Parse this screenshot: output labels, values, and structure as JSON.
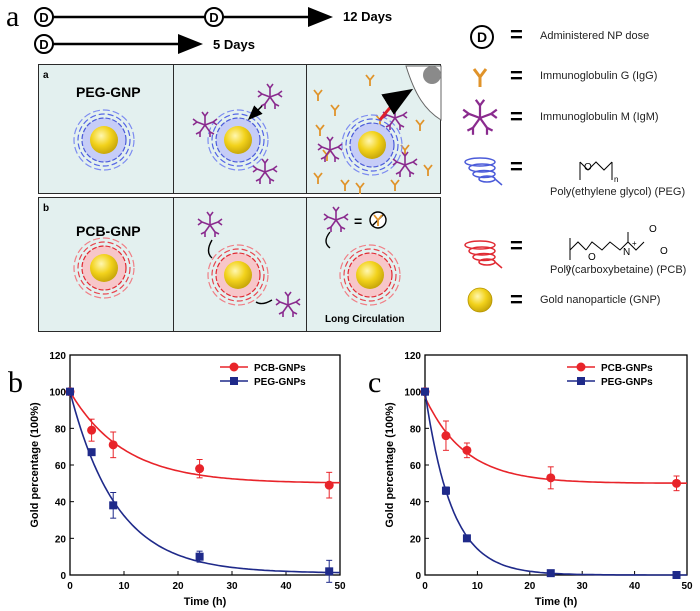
{
  "panel_a_letter": "a",
  "panel_b_letter": "b",
  "panel_c_letter": "c",
  "timeline": {
    "dose_symbol": "D",
    "label_12": "12 Days",
    "label_5": "5 Days"
  },
  "schematic": {
    "row_a_label": "a",
    "row_b_label": "b",
    "peg_title": "PEG-GNP",
    "pcb_title": "PCB-GNP",
    "long_circulation": "Long Circulation"
  },
  "legend": {
    "equals": "=",
    "dose_symbol": "D",
    "dose": "Administered NP dose",
    "igg": "Immunoglobulin G (IgG)",
    "igm": "Immunoglobulin M (IgM)",
    "peg": "Poly(ethylene glycol) (PEG)",
    "pcb": "Poly(carboxybetaine) (PCB)",
    "gnp": "Gold nanoparticle (GNP)",
    "peg_formula_n": "n",
    "pcb_formula_n": "n",
    "pcb_formula_nplus": "N",
    "pcb_plus": "+",
    "o": "O"
  },
  "colors": {
    "pcb": "#e8242a",
    "peg": "#1f2a8a",
    "panel_bg": "#e3f0ef",
    "gold": "#f2d21b"
  },
  "chart_data": [
    {
      "type": "scatter",
      "panel": "b",
      "xlabel": "Time (h)",
      "ylabel": "Gold percentage (100%)",
      "xlim": [
        0,
        50
      ],
      "ylim": [
        0,
        120
      ],
      "xticks": [
        0,
        10,
        20,
        30,
        40,
        50
      ],
      "yticks": [
        0,
        20,
        40,
        60,
        80,
        100,
        120
      ],
      "legend_position": "top-right",
      "series": [
        {
          "name": "PCB-GNPs",
          "marker": "circle",
          "color": "#e8242a",
          "x": [
            0,
            4,
            8,
            24,
            48
          ],
          "y": [
            100,
            79,
            71,
            58,
            49
          ],
          "err": [
            0,
            6,
            7,
            5,
            7
          ],
          "fit": {
            "a": 50,
            "b": 50,
            "k": 0.1
          }
        },
        {
          "name": "PEG-GNPs",
          "marker": "square",
          "color": "#1f2a8a",
          "x": [
            0,
            4,
            8,
            24,
            48
          ],
          "y": [
            100,
            67,
            38,
            10,
            2
          ],
          "err": [
            0,
            0,
            7,
            3,
            6
          ],
          "fit": {
            "a": 1,
            "b": 99,
            "k": 0.115
          }
        }
      ]
    },
    {
      "type": "scatter",
      "panel": "c",
      "xlabel": "Time (h)",
      "ylabel": "Gold percentage (100%)",
      "xlim": [
        0,
        50
      ],
      "ylim": [
        0,
        120
      ],
      "xticks": [
        0,
        10,
        20,
        30,
        40,
        50
      ],
      "yticks": [
        0,
        20,
        40,
        60,
        80,
        100,
        120
      ],
      "legend_position": "top-right",
      "series": [
        {
          "name": "PCB-GNPs",
          "marker": "circle",
          "color": "#e8242a",
          "x": [
            0,
            4,
            8,
            24,
            48
          ],
          "y": [
            100,
            76,
            68,
            53,
            50
          ],
          "err": [
            0,
            8,
            4,
            6,
            4
          ],
          "fit": {
            "a": 50,
            "b": 47,
            "k": 0.13
          }
        },
        {
          "name": "PEG-GNPs",
          "marker": "square",
          "color": "#1f2a8a",
          "x": [
            0,
            4,
            8,
            24,
            48
          ],
          "y": [
            100,
            46,
            20,
            1,
            0
          ],
          "err": [
            0,
            2,
            0,
            0,
            0
          ],
          "fit": {
            "a": 0,
            "b": 100,
            "k": 0.195
          }
        }
      ]
    }
  ]
}
